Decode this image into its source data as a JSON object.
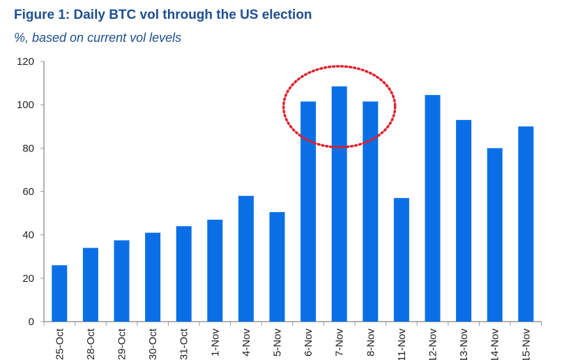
{
  "chart_data": {
    "type": "bar",
    "title": "Figure 1: Daily BTC vol through the US election",
    "subtitle": "%, based on current vol levels",
    "xlabel": "",
    "ylabel": "",
    "ylim": [
      0,
      120
    ],
    "yticks": [
      0,
      20,
      40,
      60,
      80,
      100,
      120
    ],
    "categories": [
      "25-Oct",
      "28-Oct",
      "29-Oct",
      "30-Oct",
      "31-Oct",
      "1-Nov",
      "4-Nov",
      "5-Nov",
      "6-Nov",
      "7-Nov",
      "8-Nov",
      "11-Nov",
      "12-Nov",
      "13-Nov",
      "14-Nov",
      "15-Nov"
    ],
    "values": [
      26,
      34,
      37.5,
      41,
      44,
      47,
      58,
      50.5,
      101.5,
      108.5,
      101.5,
      57,
      104.5,
      93,
      80,
      90
    ],
    "grid": false,
    "annotations": [
      {
        "type": "dotted-ellipse",
        "highlight_categories": [
          "6-Nov",
          "7-Nov",
          "8-Nov"
        ],
        "color": "#e0202a"
      }
    ],
    "bar_color": "#0a6fe6"
  }
}
